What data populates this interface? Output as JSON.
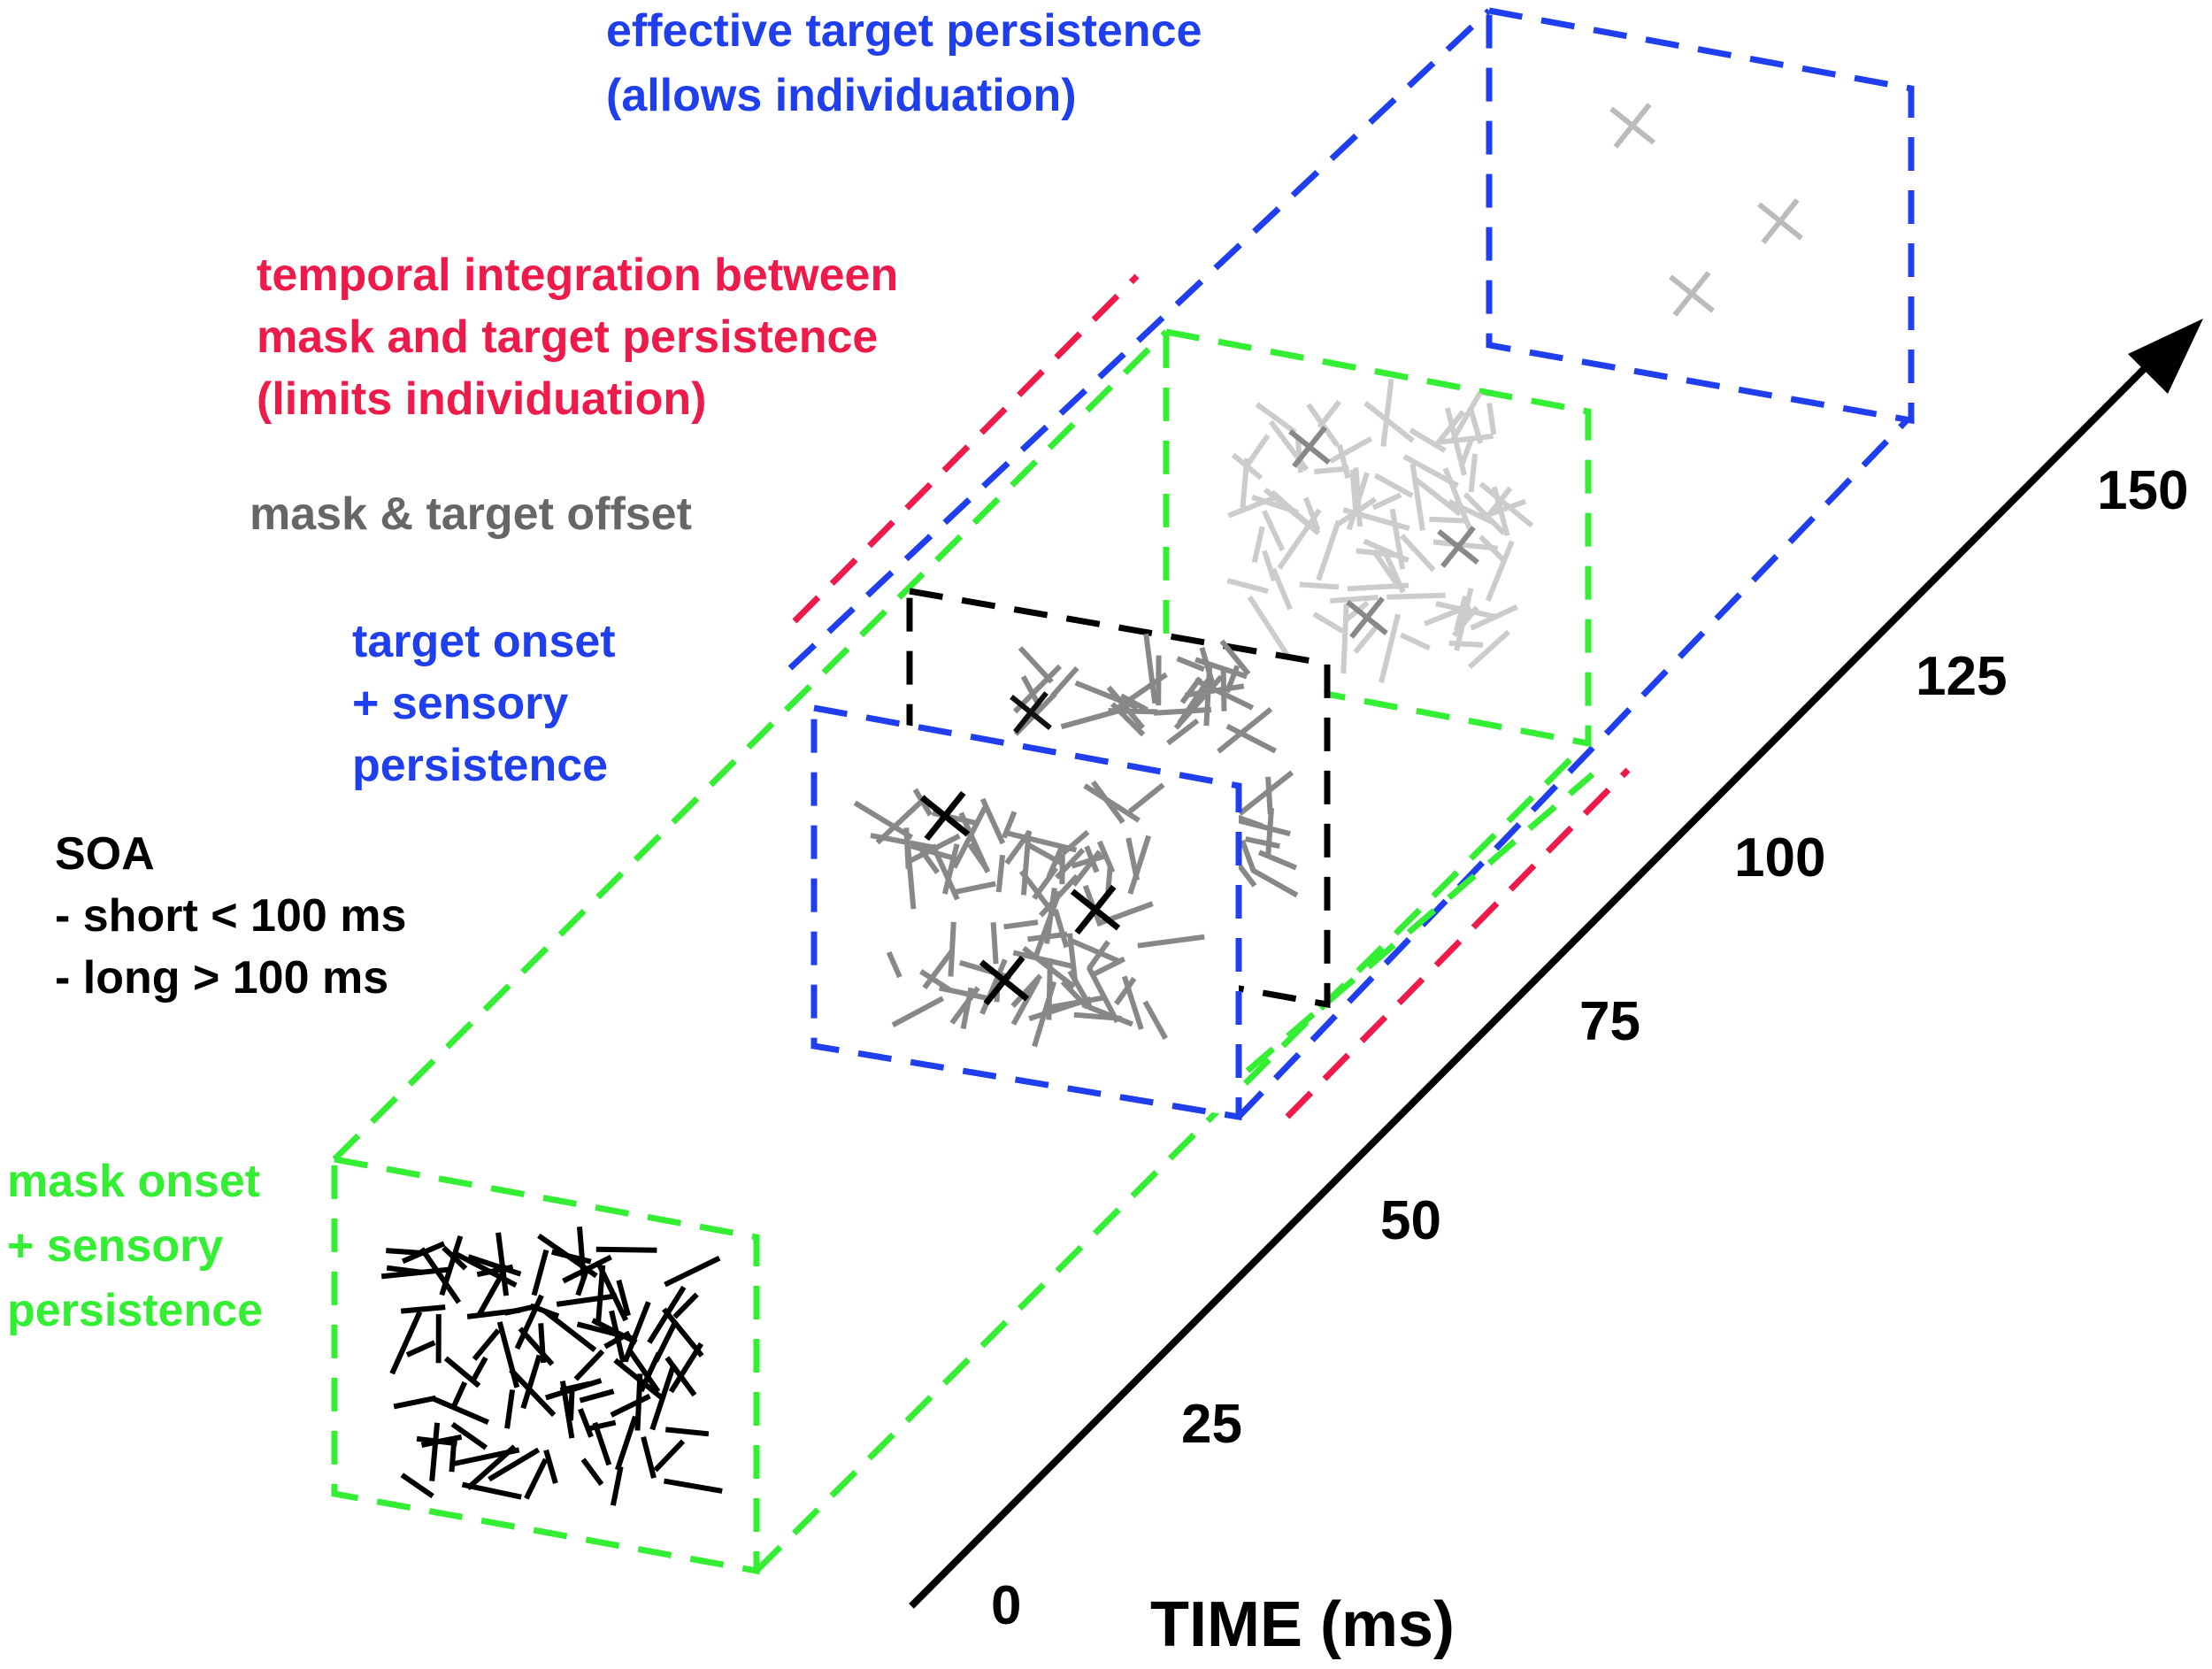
{
  "colors": {
    "green": "#33ee33",
    "blue": "#1f3fee",
    "red": "#ee1a4a",
    "black": "#000000",
    "gray": "#666666",
    "mid_gray": "#888888",
    "light_gray": "#bbbbbb",
    "lighter_gray": "#cccccc"
  },
  "labels": {
    "effective_persistence": [
      "effective target persistence",
      "(allows individuation)"
    ],
    "temporal_integration": [
      "temporal integration between",
      "mask and target persistence",
      "(limits individuation)"
    ],
    "mask_target_offset": "mask & target offset",
    "target_onset": [
      "target onset",
      "+ sensory",
      "persistence"
    ],
    "soa": [
      "SOA",
      "- short < 100 ms",
      "- long > 100 ms"
    ],
    "mask_onset": [
      "mask onset",
      "+ sensory",
      "persistence"
    ]
  },
  "time_axis": {
    "title": "TIME (ms)",
    "ticks": [
      "0",
      "25",
      "50",
      "75",
      "100",
      "125",
      "150"
    ]
  },
  "panels": [
    {
      "id": "mask-onset-panel",
      "border": "green",
      "content": "mask",
      "tone": "black"
    },
    {
      "id": "target-onset-panel",
      "border": "blue",
      "content": "mask_with_targets",
      "tone": "gray"
    },
    {
      "id": "offset-panel",
      "border": "black",
      "content": "mask_with_targets",
      "tone": "gray"
    },
    {
      "id": "integration-panel",
      "border": "green",
      "content": "mask_with_targets",
      "tone": "light"
    },
    {
      "id": "effective-persistence-panel",
      "border": "blue",
      "content": "targets_only",
      "tone": "light"
    }
  ]
}
